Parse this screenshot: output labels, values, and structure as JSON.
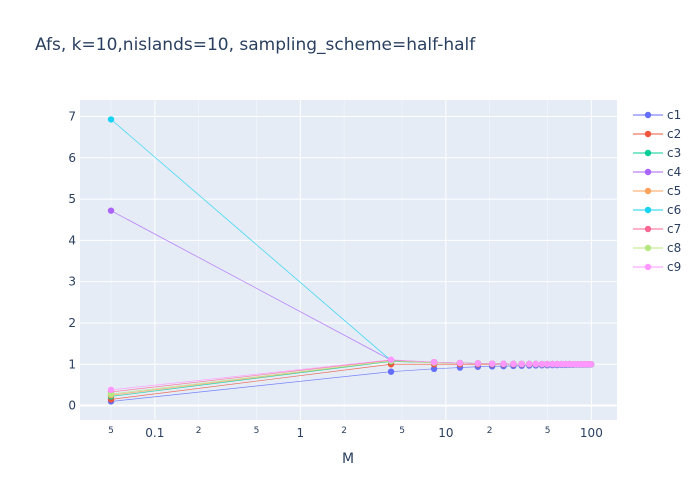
{
  "chart_data": {
    "type": "line",
    "title": "Afs, k=10,nislands=10, sampling_scheme=half-half",
    "xlabel": "M",
    "ylabel": "",
    "xscale": "log",
    "xlim": [
      0.0306,
      150
    ],
    "ylim": [
      -0.35,
      7.4
    ],
    "grid": true,
    "legend_position": "right",
    "x_ticks": [
      0.1,
      1,
      10,
      100
    ],
    "x_tick_labels": [
      "0.1",
      "1",
      "10",
      "100"
    ],
    "x_minor_ticks": [
      0.05,
      0.2,
      0.5,
      2,
      5,
      20,
      50
    ],
    "x_minor_tick_labels": [
      "5",
      "2",
      "5",
      "2",
      "5",
      "2",
      "5"
    ],
    "y_ticks": [
      0,
      1,
      2,
      3,
      4,
      5,
      6,
      7
    ],
    "y_tick_labels": [
      "0",
      "1",
      "2",
      "3",
      "4",
      "5",
      "6",
      "7"
    ],
    "x": [
      0.05,
      4.2,
      8.3,
      12.5,
      16.6,
      20.8,
      24.9,
      29.1,
      33.2,
      37.4,
      41.5,
      45.7,
      49.8,
      54,
      58.1,
      62.3,
      66.4,
      70.6,
      74.7,
      78.9,
      83,
      87.2,
      91.3,
      95.5,
      99.6
    ],
    "series": [
      {
        "name": "c1",
        "color": "#636efa",
        "values": [
          0.1,
          0.82,
          0.89,
          0.92,
          0.94,
          0.95,
          0.955,
          0.96,
          0.965,
          0.97,
          0.972,
          0.975,
          0.977,
          0.98,
          0.982,
          0.984,
          0.985,
          0.987,
          0.988,
          0.99,
          0.99,
          0.991,
          0.992,
          0.993,
          0.994
        ]
      },
      {
        "name": "c2",
        "color": "#EF553B",
        "values": [
          0.15,
          1.0,
          1.0,
          1.0,
          1.0,
          1.0,
          1.0,
          1.0,
          1.0,
          1.0,
          1.0,
          1.0,
          1.0,
          1.0,
          1.0,
          1.0,
          1.0,
          1.0,
          1.0,
          1.0,
          1.0,
          1.0,
          1.0,
          1.0,
          1.0
        ]
      },
      {
        "name": "c3",
        "color": "#00cc96",
        "values": [
          0.22,
          1.07,
          1.04,
          1.03,
          1.02,
          1.015,
          1.012,
          1.01,
          1.008,
          1.007,
          1.006,
          1.005,
          1.005,
          1.004,
          1.004,
          1.003,
          1.003,
          1.003,
          1.002,
          1.002,
          1.002,
          1.002,
          1.002,
          1.001,
          1.001
        ]
      },
      {
        "name": "c4",
        "color": "#ab63fa",
        "values": [
          4.72,
          1.1,
          1.05,
          1.03,
          1.02,
          1.015,
          1.012,
          1.01,
          1.008,
          1.007,
          1.006,
          1.005,
          1.005,
          1.004,
          1.004,
          1.003,
          1.003,
          1.003,
          1.002,
          1.002,
          1.002,
          1.002,
          1.002,
          1.001,
          1.001
        ]
      },
      {
        "name": "c5",
        "color": "#FFA15A",
        "values": [
          0.25,
          1.08,
          1.04,
          1.03,
          1.02,
          1.015,
          1.012,
          1.01,
          1.008,
          1.007,
          1.006,
          1.005,
          1.005,
          1.004,
          1.004,
          1.003,
          1.003,
          1.003,
          1.002,
          1.002,
          1.002,
          1.002,
          1.002,
          1.001,
          1.001
        ]
      },
      {
        "name": "c6",
        "color": "#19d3f3",
        "values": [
          6.93,
          1.09,
          1.05,
          1.03,
          1.02,
          1.015,
          1.012,
          1.01,
          1.008,
          1.007,
          1.006,
          1.005,
          1.005,
          1.004,
          1.004,
          1.003,
          1.003,
          1.003,
          1.002,
          1.002,
          1.002,
          1.002,
          1.002,
          1.001,
          1.001
        ]
      },
      {
        "name": "c7",
        "color": "#FF6692",
        "values": [
          0.33,
          1.1,
          1.05,
          1.03,
          1.02,
          1.015,
          1.012,
          1.01,
          1.008,
          1.007,
          1.006,
          1.005,
          1.005,
          1.004,
          1.004,
          1.003,
          1.003,
          1.003,
          1.002,
          1.002,
          1.002,
          1.002,
          1.002,
          1.001,
          1.001
        ]
      },
      {
        "name": "c8",
        "color": "#B6E880",
        "values": [
          0.28,
          1.08,
          1.04,
          1.03,
          1.02,
          1.015,
          1.012,
          1.01,
          1.008,
          1.007,
          1.006,
          1.005,
          1.005,
          1.004,
          1.004,
          1.003,
          1.003,
          1.003,
          1.002,
          1.002,
          1.002,
          1.002,
          1.002,
          1.001,
          1.001
        ]
      },
      {
        "name": "c9",
        "color": "#FF97FF",
        "values": [
          0.38,
          1.11,
          1.05,
          1.03,
          1.02,
          1.015,
          1.012,
          1.01,
          1.008,
          1.007,
          1.006,
          1.005,
          1.005,
          1.004,
          1.004,
          1.003,
          1.003,
          1.003,
          1.002,
          1.002,
          1.002,
          1.002,
          1.002,
          1.001,
          1.001
        ]
      }
    ]
  }
}
